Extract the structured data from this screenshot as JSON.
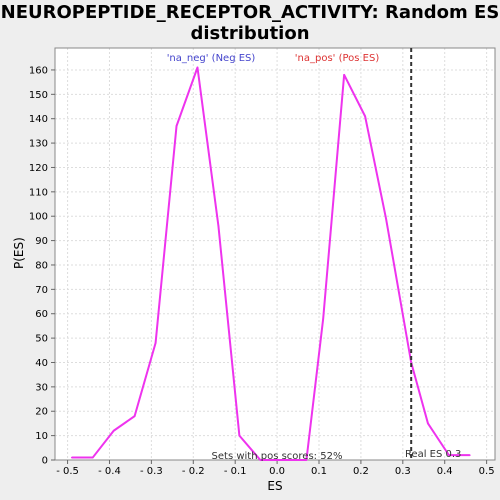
{
  "chart_data": {
    "type": "line",
    "title_lines": [
      "NEUROPEPTIDE_RECEPTOR_ACTIVITY: Random ES",
      "distribution"
    ],
    "xlabel": "ES",
    "ylabel": "P(ES)",
    "xlim": [
      -0.53,
      0.52
    ],
    "ylim": [
      0,
      169
    ],
    "x_ticks": [
      -0.5,
      -0.4,
      -0.3,
      -0.2,
      -0.1,
      0.0,
      0.1,
      0.2,
      0.3,
      0.4,
      0.5
    ],
    "x_tick_labels": [
      "- 0.5",
      "- 0.4",
      "- 0.3",
      "- 0.2",
      "- 0.1",
      "0.0",
      "0.1",
      "0.2",
      "0.3",
      "0.4",
      "0.5"
    ],
    "y_ticks": [
      0,
      10,
      20,
      30,
      40,
      50,
      60,
      70,
      80,
      90,
      100,
      110,
      120,
      130,
      140,
      150,
      160
    ],
    "grid": true,
    "series": [
      {
        "color": "#ee33ee",
        "x": [
          -0.49,
          -0.44,
          -0.39,
          -0.34,
          -0.29,
          -0.24,
          -0.19,
          -0.14,
          -0.09,
          -0.04,
          0.0,
          0.07,
          0.11,
          0.16,
          0.21,
          0.26,
          0.32,
          0.36,
          0.41,
          0.46
        ],
        "y": [
          1,
          1,
          12,
          18,
          48,
          137,
          161,
          96,
          10,
          0,
          0,
          0,
          58,
          158,
          141,
          99,
          40,
          15,
          2,
          2
        ]
      }
    ],
    "real_es": {
      "x": 0.32,
      "label": "Real ES 0.3",
      "color": "#333333"
    },
    "annotations": {
      "neg_label": "'na_neg' (Neg ES)",
      "neg_color": "#4444cc",
      "pos_label": "'na_pos' (Pos ES)",
      "pos_color": "#dd3333",
      "sets_label": "Sets with pos scores: 52%"
    }
  }
}
